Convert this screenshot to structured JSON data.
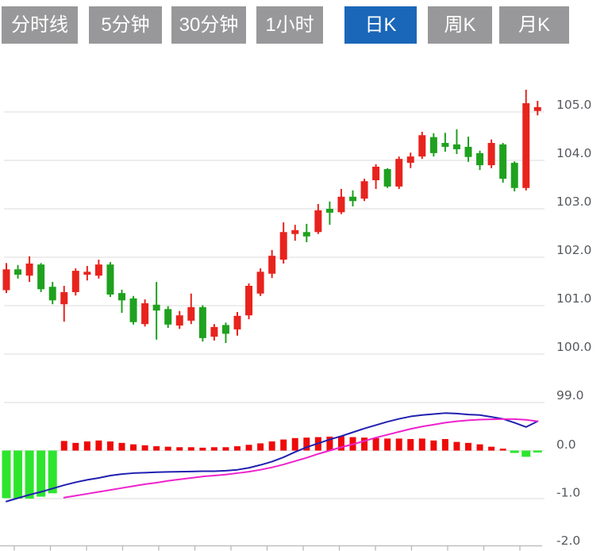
{
  "toolbar": {
    "buttons": [
      {
        "label": "分时线",
        "active": false
      },
      {
        "label": "5分钟",
        "active": false
      },
      {
        "label": "30分钟",
        "active": false
      },
      {
        "label": "1小时",
        "active": false
      },
      {
        "label": "日K",
        "active": true
      },
      {
        "label": "周K",
        "active": false
      },
      {
        "label": "月K",
        "active": false
      }
    ]
  },
  "colors": {
    "candle_up": "#e8231d",
    "candle_down": "#1fa11f",
    "macd_bar_up": "#ee0a0a",
    "macd_bar_down": "#2ee52e",
    "dif_line": "#2020b0",
    "dea_line": "#ee22cc",
    "grid_line": "#e2e2e2",
    "axis_line": "#b8b8b8",
    "axis_label": "#56595e",
    "tab_bg": "#98989a",
    "tab_active_bg": "#1a66b8",
    "tab_text": "#ffffff"
  },
  "chart_data": {
    "type": "candlestick",
    "title": "",
    "subtitle": "",
    "legend": [],
    "grid": true,
    "price_axis": {
      "side": "right",
      "ticks": [
        105.0,
        104.0,
        103.0,
        102.0,
        101.0,
        100.0,
        99.0
      ],
      "labels": [
        "105.0",
        "104.0",
        "103.0",
        "102.0",
        "101.0",
        "100.0",
        "99.0"
      ],
      "range_shown": [
        98.5,
        105.6
      ]
    },
    "macd_axis": {
      "side": "right",
      "ticks": [
        0.0,
        -1.0,
        -2.0
      ],
      "labels": [
        "0.0",
        "-1.0",
        "-2.0"
      ],
      "range_shown": [
        -2.0,
        0.45
      ]
    },
    "candles_ochl": [
      [
        101.32,
        101.75,
        101.88,
        101.26
      ],
      [
        101.75,
        101.64,
        101.84,
        101.56
      ],
      [
        101.62,
        101.87,
        102.02,
        101.49
      ],
      [
        101.85,
        101.34,
        101.88,
        101.28
      ],
      [
        101.39,
        101.11,
        101.49,
        101.03
      ],
      [
        101.03,
        101.28,
        101.41,
        100.67
      ],
      [
        101.28,
        101.72,
        101.77,
        101.21
      ],
      [
        101.64,
        101.7,
        101.82,
        101.52
      ],
      [
        101.62,
        101.85,
        101.95,
        101.56
      ],
      [
        101.85,
        101.23,
        101.9,
        101.18
      ],
      [
        101.26,
        101.11,
        101.33,
        100.85
      ],
      [
        101.15,
        100.66,
        101.2,
        100.61
      ],
      [
        100.62,
        101.05,
        101.13,
        100.57
      ],
      [
        101.02,
        100.9,
        101.49,
        100.3
      ],
      [
        100.93,
        100.61,
        100.99,
        100.54
      ],
      [
        100.59,
        100.8,
        100.89,
        100.52
      ],
      [
        100.69,
        100.97,
        101.25,
        100.62
      ],
      [
        100.97,
        100.33,
        101.01,
        100.26
      ],
      [
        100.36,
        100.56,
        100.62,
        100.28
      ],
      [
        100.6,
        100.42,
        100.65,
        100.23
      ],
      [
        100.51,
        100.79,
        100.87,
        100.38
      ],
      [
        100.8,
        101.41,
        101.46,
        100.72
      ],
      [
        101.25,
        101.7,
        101.77,
        101.2
      ],
      [
        101.66,
        102.03,
        102.15,
        101.57
      ],
      [
        101.95,
        102.52,
        102.72,
        101.87
      ],
      [
        102.48,
        102.56,
        102.67,
        102.34
      ],
      [
        102.52,
        102.43,
        102.69,
        102.31
      ],
      [
        102.52,
        102.97,
        103.1,
        102.48
      ],
      [
        103.0,
        102.92,
        103.15,
        102.67
      ],
      [
        102.93,
        103.25,
        103.41,
        102.89
      ],
      [
        103.25,
        103.16,
        103.38,
        103.05
      ],
      [
        103.21,
        103.57,
        103.62,
        103.16
      ],
      [
        103.59,
        103.87,
        103.92,
        103.41
      ],
      [
        103.82,
        103.46,
        103.84,
        103.43
      ],
      [
        103.46,
        104.03,
        104.08,
        103.41
      ],
      [
        103.95,
        104.08,
        104.16,
        103.84
      ],
      [
        104.08,
        104.52,
        104.59,
        104.03
      ],
      [
        104.48,
        104.15,
        104.56,
        104.08
      ],
      [
        104.36,
        104.28,
        104.57,
        104.18
      ],
      [
        104.33,
        104.23,
        104.64,
        104.13
      ],
      [
        104.28,
        104.07,
        104.49,
        103.97
      ],
      [
        104.15,
        103.9,
        104.2,
        103.8
      ],
      [
        103.9,
        104.36,
        104.43,
        103.84
      ],
      [
        104.33,
        103.62,
        104.36,
        103.54
      ],
      [
        103.95,
        103.43,
        103.98,
        103.36
      ],
      [
        103.43,
        105.18,
        105.46,
        103.38
      ],
      [
        105.02,
        105.1,
        105.23,
        104.93
      ]
    ],
    "macd_hist": [
      -0.99,
      -1.0,
      -1.0,
      -0.96,
      -0.89,
      0.2,
      0.16,
      0.19,
      0.21,
      0.19,
      0.16,
      0.13,
      0.11,
      0.09,
      0.08,
      0.07,
      0.07,
      0.06,
      0.07,
      0.07,
      0.09,
      0.12,
      0.15,
      0.19,
      0.23,
      0.26,
      0.27,
      0.28,
      0.29,
      0.3,
      0.28,
      0.27,
      0.26,
      0.25,
      0.25,
      0.24,
      0.25,
      0.21,
      0.24,
      0.18,
      0.16,
      0.13,
      0.08,
      0.04,
      -0.05,
      -0.13,
      -0.04
    ],
    "dif": [
      -1.06,
      -0.99,
      -0.92,
      -0.86,
      -0.79,
      -0.72,
      -0.66,
      -0.61,
      -0.57,
      -0.52,
      -0.49,
      -0.47,
      -0.46,
      -0.45,
      -0.445,
      -0.44,
      -0.435,
      -0.43,
      -0.43,
      -0.42,
      -0.4,
      -0.36,
      -0.3,
      -0.23,
      -0.14,
      -0.03,
      0.07,
      0.15,
      0.23,
      0.3,
      0.38,
      0.46,
      0.53,
      0.6,
      0.66,
      0.71,
      0.74,
      0.76,
      0.78,
      0.77,
      0.75,
      0.74,
      0.7,
      0.66,
      0.58,
      0.49,
      0.61
    ],
    "dea": [
      null,
      null,
      null,
      null,
      null,
      -0.98,
      -0.94,
      -0.9,
      -0.86,
      -0.82,
      -0.78,
      -0.74,
      -0.7,
      -0.67,
      -0.63,
      -0.6,
      -0.57,
      -0.54,
      -0.52,
      -0.5,
      -0.47,
      -0.44,
      -0.4,
      -0.35,
      -0.29,
      -0.22,
      -0.15,
      -0.07,
      0.0,
      0.07,
      0.13,
      0.2,
      0.27,
      0.33,
      0.39,
      0.45,
      0.5,
      0.54,
      0.58,
      0.61,
      0.63,
      0.645,
      0.65,
      0.655,
      0.655,
      0.64,
      0.61
    ]
  }
}
